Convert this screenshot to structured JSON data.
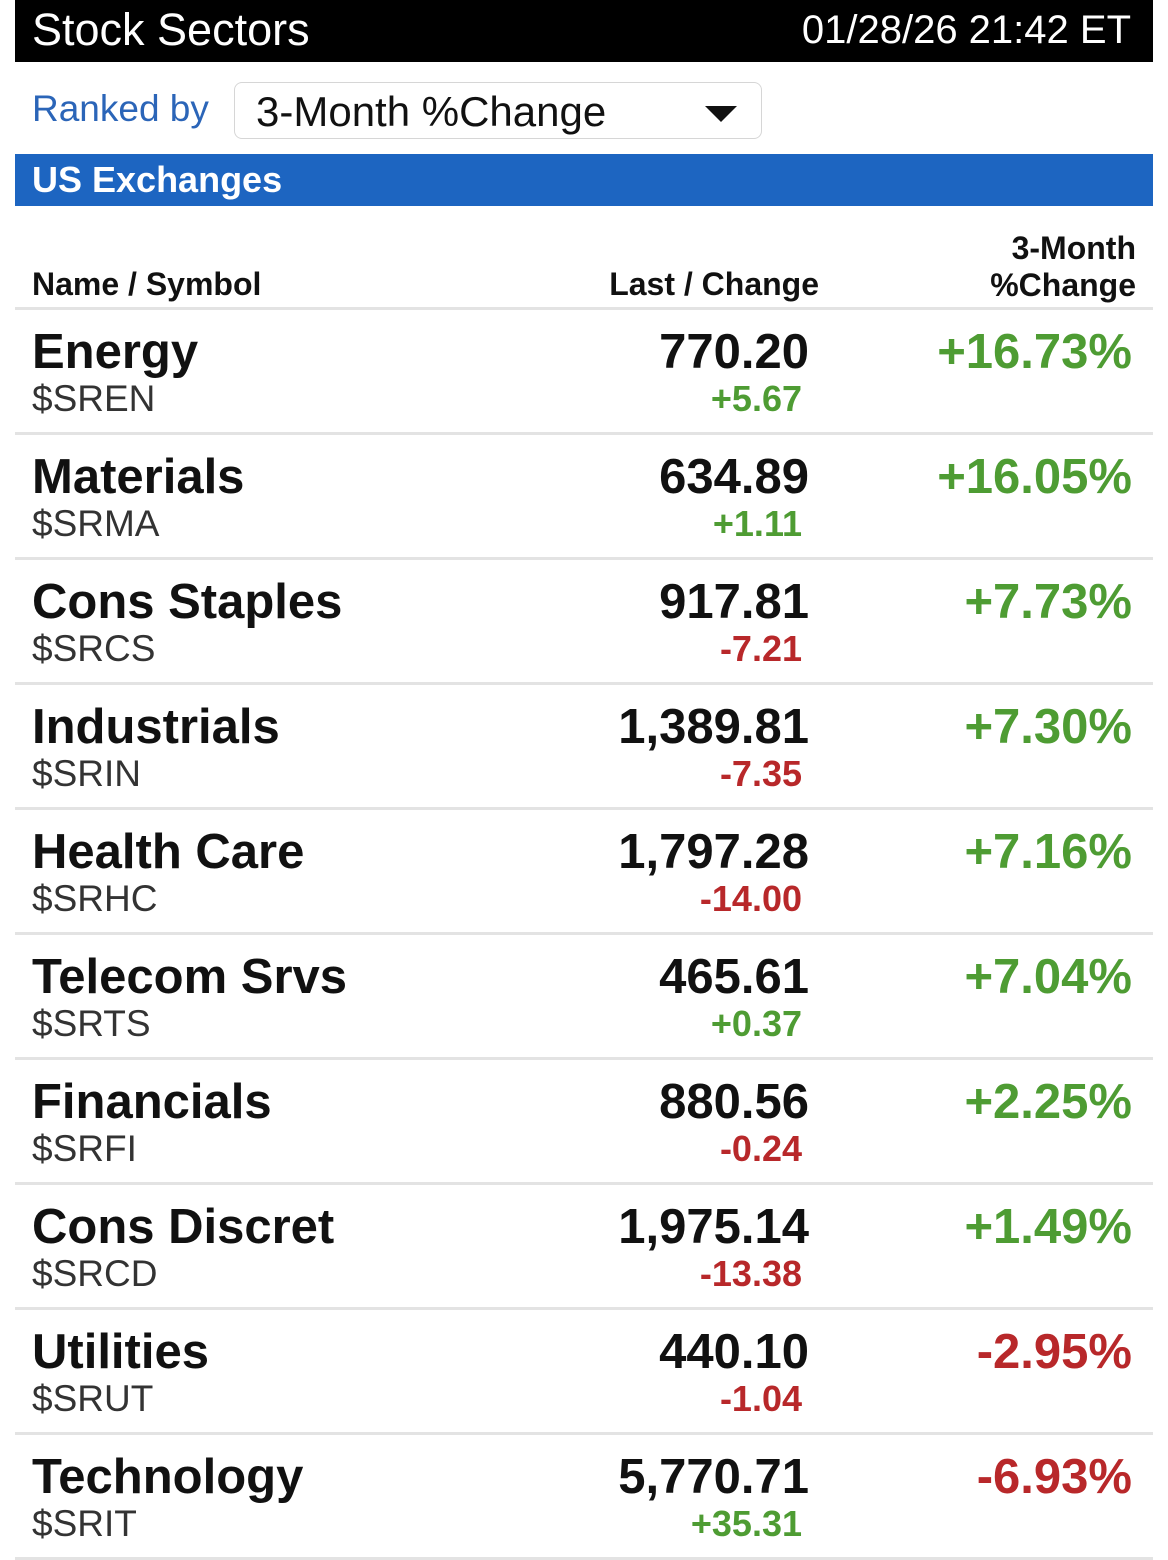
{
  "header": {
    "title": "Stock Sectors",
    "timestamp": "01/28/26 21:42 ET"
  },
  "ranking": {
    "label": "Ranked by",
    "selected": "3-Month %Change"
  },
  "section": {
    "title": "US Exchanges"
  },
  "columns": {
    "name": "Name / Symbol",
    "last": "Last / Change",
    "pct_line1": "3-Month",
    "pct_line2": "%Change"
  },
  "colors": {
    "up": "#4e9c33",
    "down": "#b8282a",
    "accent": "#1d65c1"
  },
  "rows": [
    {
      "name": "Energy",
      "symbol": "$SREN",
      "last": "770.20",
      "change": "+5.67",
      "change_dir": "up",
      "pct": "+16.73%",
      "pct_dir": "up"
    },
    {
      "name": "Materials",
      "symbol": "$SRMA",
      "last": "634.89",
      "change": "+1.11",
      "change_dir": "up",
      "pct": "+16.05%",
      "pct_dir": "up"
    },
    {
      "name": "Cons Staples",
      "symbol": "$SRCS",
      "last": "917.81",
      "change": "-7.21",
      "change_dir": "down",
      "pct": "+7.73%",
      "pct_dir": "up"
    },
    {
      "name": "Industrials",
      "symbol": "$SRIN",
      "last": "1,389.81",
      "change": "-7.35",
      "change_dir": "down",
      "pct": "+7.30%",
      "pct_dir": "up"
    },
    {
      "name": "Health Care",
      "symbol": "$SRHC",
      "last": "1,797.28",
      "change": "-14.00",
      "change_dir": "down",
      "pct": "+7.16%",
      "pct_dir": "up"
    },
    {
      "name": "Telecom Srvs",
      "symbol": "$SRTS",
      "last": "465.61",
      "change": "+0.37",
      "change_dir": "up",
      "pct": "+7.04%",
      "pct_dir": "up"
    },
    {
      "name": "Financials",
      "symbol": "$SRFI",
      "last": "880.56",
      "change": "-0.24",
      "change_dir": "down",
      "pct": "+2.25%",
      "pct_dir": "up"
    },
    {
      "name": "Cons Discret",
      "symbol": "$SRCD",
      "last": "1,975.14",
      "change": "-13.38",
      "change_dir": "down",
      "pct": "+1.49%",
      "pct_dir": "up"
    },
    {
      "name": "Utilities",
      "symbol": "$SRUT",
      "last": "440.10",
      "change": "-1.04",
      "change_dir": "down",
      "pct": "-2.95%",
      "pct_dir": "down"
    },
    {
      "name": "Technology",
      "symbol": "$SRIT",
      "last": "5,770.71",
      "change": "+35.31",
      "change_dir": "up",
      "pct": "-6.93%",
      "pct_dir": "down"
    }
  ]
}
